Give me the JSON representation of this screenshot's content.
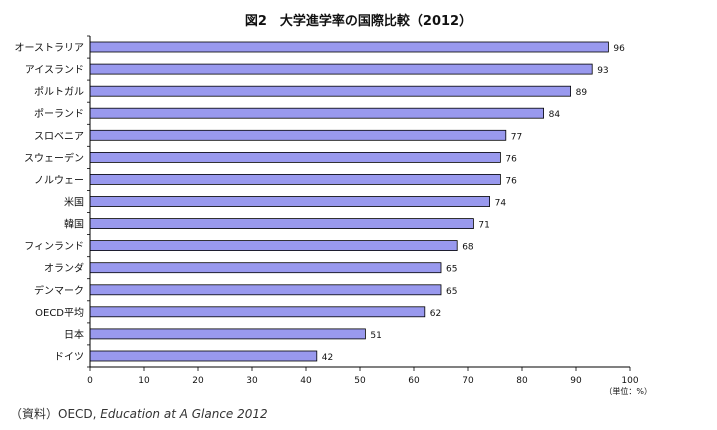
{
  "chart_data": {
    "type": "bar",
    "orientation": "horizontal",
    "title": "図2　大学進学率の国際比較（2012）",
    "categories": [
      "オーストラリア",
      "アイスランド",
      "ポルトガル",
      "ポーランド",
      "スロベニア",
      "スウェーデン",
      "ノルウェー",
      "米国",
      "韓国",
      "フィンランド",
      "オランダ",
      "デンマーク",
      "OECD平均",
      "日本",
      "ドイツ"
    ],
    "values": [
      96,
      93,
      89,
      84,
      77,
      76,
      76,
      74,
      71,
      68,
      65,
      65,
      62,
      51,
      42
    ],
    "xlim": [
      0,
      100
    ],
    "xticks": [
      0,
      10,
      20,
      30,
      40,
      50,
      60,
      70,
      80,
      90,
      100
    ],
    "unit_label": "（単位：%）",
    "grid": false,
    "legend": "none",
    "bar_color": "#9999ee",
    "bar_stroke": "#000000"
  },
  "source": {
    "prefix": "（資料）OECD, ",
    "publication": "Education at A Glance 2012"
  }
}
